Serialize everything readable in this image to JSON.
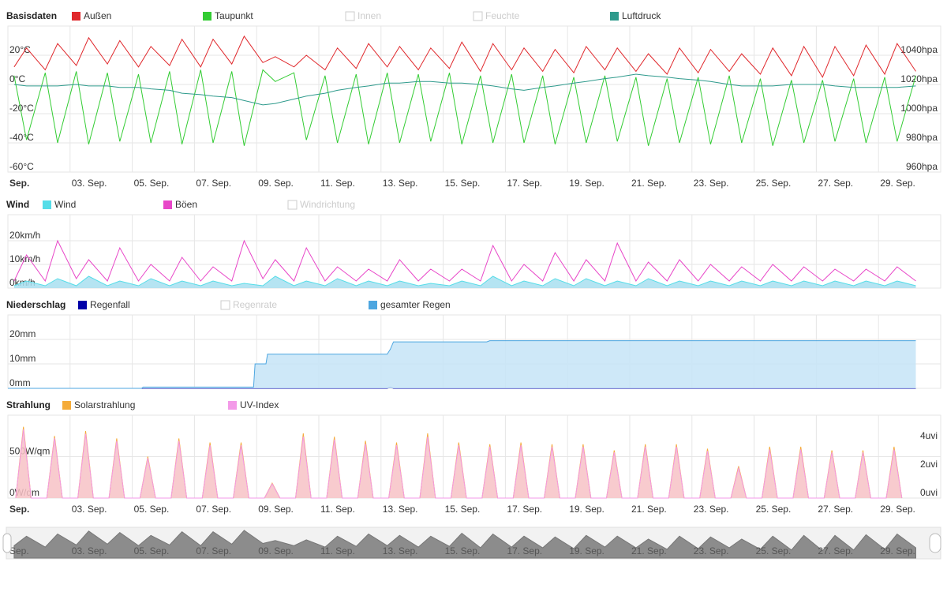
{
  "chart_data": [
    {
      "type": "line",
      "title": "Basisdaten",
      "xlim": [
        1,
        31
      ],
      "ylim": [
        -60,
        40
      ],
      "y2lim": [
        960,
        1060
      ],
      "navigator": {
        "ylim": [
          -5,
          35
        ]
      },
      "yticks": [
        {
          "value": -60,
          "label": "-60°C"
        },
        {
          "value": -40,
          "label": "-40°C"
        },
        {
          "value": -20,
          "label": "-20°C"
        },
        {
          "value": 0,
          "label": "0°C"
        },
        {
          "value": 20,
          "label": "20°C"
        }
      ],
      "y2ticks": [
        {
          "value": 960,
          "label": "960hpa"
        },
        {
          "value": 980,
          "label": "980hpa"
        },
        {
          "value": 1000,
          "label": "1000hpa"
        },
        {
          "value": 1020,
          "label": "1020hpa"
        },
        {
          "value": 1040,
          "label": "1040hpa"
        }
      ],
      "xticks": [
        {
          "value": 1,
          "label": "Sep."
        },
        {
          "value": 3,
          "label": "03. Sep."
        },
        {
          "value": 5,
          "label": "05. Sep."
        },
        {
          "value": 7,
          "label": "07. Sep."
        },
        {
          "value": 9,
          "label": "09. Sep."
        },
        {
          "value": 11,
          "label": "11. Sep."
        },
        {
          "value": 13,
          "label": "13. Sep."
        },
        {
          "value": 15,
          "label": "15. Sep."
        },
        {
          "value": 17,
          "label": "17. Sep."
        },
        {
          "value": 19,
          "label": "19. Sep."
        },
        {
          "value": 21,
          "label": "21. Sep."
        },
        {
          "value": 23,
          "label": "23. Sep."
        },
        {
          "value": 25,
          "label": "25. Sep."
        },
        {
          "value": 27,
          "label": "27. Sep."
        },
        {
          "value": 29,
          "label": "29. Sep."
        }
      ],
      "x": [
        1.2,
        1.6,
        2.2,
        2.6,
        3.2,
        3.6,
        4.2,
        4.6,
        5.2,
        5.6,
        6.2,
        6.6,
        7.2,
        7.6,
        8.2,
        8.6,
        9.2,
        9.6,
        10.2,
        10.6,
        11.2,
        11.6,
        12.2,
        12.6,
        13.2,
        13.6,
        14.2,
        14.6,
        15.2,
        15.6,
        16.2,
        16.6,
        17.2,
        17.6,
        18.2,
        18.6,
        19.2,
        19.6,
        20.2,
        20.6,
        21.2,
        21.6,
        22.2,
        22.6,
        23.2,
        23.6,
        24.2,
        24.6,
        25.2,
        25.6,
        26.2,
        26.6,
        27.2,
        27.6,
        28.2,
        28.6,
        29.2,
        29.6,
        30.2
      ],
      "series": [
        {
          "name": "Außen",
          "color": "#e0282c",
          "values": [
            12,
            25,
            10,
            28,
            13,
            32,
            14,
            30,
            12,
            26,
            13,
            31,
            12,
            31,
            14,
            33,
            15,
            19,
            12,
            20,
            10,
            25,
            11,
            28,
            12,
            26,
            10,
            25,
            11,
            29,
            9,
            28,
            10,
            25,
            9,
            24,
            8,
            26,
            10,
            25,
            9,
            21,
            7,
            25,
            8,
            24,
            9,
            21,
            7,
            25,
            6,
            26,
            5,
            26,
            6,
            27,
            7,
            28,
            9
          ]
        },
        {
          "name": "Taupunkt",
          "color": "#33cc33",
          "values": [
            6,
            -38,
            8,
            -40,
            9,
            -41,
            8,
            -39,
            7,
            -40,
            9,
            -41,
            10,
            -40,
            9,
            -42,
            10,
            2,
            8,
            -38,
            6,
            -40,
            7,
            -41,
            8,
            -40,
            7,
            -39,
            8,
            -41,
            6,
            -40,
            7,
            -40,
            6,
            -41,
            5,
            -40,
            6,
            -39,
            5,
            -42,
            4,
            -40,
            5,
            -41,
            6,
            -40,
            4,
            -42,
            3,
            -40,
            3,
            -39,
            4,
            -40,
            5,
            -39,
            6
          ]
        },
        {
          "name": "Innen",
          "visible": false
        },
        {
          "name": "Feuchte",
          "visible": false
        },
        {
          "name": "Luftdruck",
          "color": "#2e9a8c",
          "axis": "y2",
          "values": [
            1020,
            1019,
            1019,
            1019,
            1020,
            1019,
            1019,
            1018,
            1018,
            1017,
            1016,
            1014,
            1013,
            1012,
            1011,
            1009,
            1006,
            1007,
            1010,
            1012,
            1014,
            1016,
            1018,
            1019,
            1021,
            1021,
            1022,
            1022,
            1021,
            1021,
            1020,
            1019,
            1017,
            1016,
            1018,
            1019,
            1021,
            1022,
            1024,
            1025,
            1027,
            1026,
            1025,
            1024,
            1023,
            1022,
            1020,
            1019,
            1019,
            1019,
            1020,
            1020,
            1020,
            1019,
            1018,
            1018,
            1018,
            1018,
            1019
          ]
        }
      ]
    },
    {
      "type": "area",
      "title": "Wind",
      "xlim": [
        1,
        31
      ],
      "ylim": [
        0,
        31
      ],
      "yticks": [
        {
          "value": 0,
          "label": "0km/h"
        },
        {
          "value": 10,
          "label": "10km/h"
        },
        {
          "value": 20,
          "label": "20km/h"
        }
      ],
      "x": [
        1.2,
        1.6,
        2.2,
        2.6,
        3.2,
        3.6,
        4.2,
        4.6,
        5.2,
        5.6,
        6.2,
        6.6,
        7.2,
        7.6,
        8.2,
        8.6,
        9.2,
        9.6,
        10.2,
        10.6,
        11.2,
        11.6,
        12.2,
        12.6,
        13.2,
        13.6,
        14.2,
        14.6,
        15.2,
        15.6,
        16.2,
        16.6,
        17.2,
        17.6,
        18.2,
        18.6,
        19.2,
        19.6,
        20.2,
        20.6,
        21.2,
        21.6,
        22.2,
        22.6,
        23.2,
        23.6,
        24.2,
        24.6,
        25.2,
        25.6,
        26.2,
        26.6,
        27.2,
        27.6,
        28.2,
        28.6,
        29.2,
        29.6,
        30.2
      ],
      "series": [
        {
          "name": "Wind",
          "color": "#55dde8",
          "fill": "#a8dff0",
          "values": [
            1,
            3,
            1,
            4,
            1,
            5,
            1,
            3,
            1,
            4,
            1,
            3,
            1,
            3,
            1,
            2,
            1,
            5,
            1,
            3,
            1,
            4,
            1,
            3,
            1,
            3,
            1,
            2,
            1,
            3,
            1,
            5,
            1,
            3,
            1,
            4,
            1,
            4,
            1,
            3,
            1,
            4,
            1,
            3,
            1,
            3,
            1,
            3,
            1,
            3,
            1,
            3,
            1,
            3,
            1,
            3,
            1,
            3,
            1
          ]
        },
        {
          "name": "Böen",
          "color": "#e846c8",
          "values": [
            3,
            14,
            3,
            20,
            4,
            12,
            3,
            17,
            3,
            10,
            3,
            13,
            3,
            9,
            3,
            20,
            4,
            12,
            3,
            17,
            3,
            9,
            3,
            8,
            3,
            12,
            3,
            8,
            3,
            8,
            3,
            18,
            3,
            10,
            3,
            15,
            3,
            12,
            3,
            19,
            3,
            11,
            3,
            12,
            3,
            10,
            3,
            9,
            3,
            10,
            3,
            9,
            3,
            8,
            3,
            8,
            3,
            9,
            3
          ]
        },
        {
          "name": "Windrichtung",
          "visible": false
        }
      ]
    },
    {
      "type": "area",
      "title": "Niederschlag",
      "xlim": [
        1,
        31
      ],
      "ylim": [
        0,
        30
      ],
      "yticks": [
        {
          "value": 0,
          "label": "0mm"
        },
        {
          "value": 10,
          "label": "10mm"
        },
        {
          "value": 20,
          "label": "20mm"
        }
      ],
      "x": [
        1,
        5.3,
        5.35,
        8.9,
        8.95,
        9.3,
        9.35,
        13.2,
        13.3,
        13.4,
        16.4,
        16.5,
        30.2
      ],
      "series": [
        {
          "name": "Regenfall",
          "color": "#0000a8",
          "values": [
            0,
            0,
            0,
            0,
            0,
            0,
            0,
            0,
            0.5,
            0,
            0,
            0,
            0
          ]
        },
        {
          "name": "Regenrate",
          "visible": false
        },
        {
          "name": "gesamter Regen",
          "color": "#4da6e0",
          "fill": "#c6e4f7",
          "values": [
            0,
            0,
            0.5,
            0.5,
            10,
            10,
            14,
            14,
            16,
            19,
            19,
            19.5,
            19.5
          ]
        }
      ]
    },
    {
      "type": "area",
      "title": "Strahlung",
      "xlim": [
        1,
        31
      ],
      "ylim": [
        0,
        1000
      ],
      "y2lim": [
        0,
        5.8
      ],
      "yticks": [
        {
          "value": 0,
          "label": "0W/qm"
        },
        {
          "value": 500,
          "label": "500W/qm"
        }
      ],
      "y2ticks": [
        {
          "value": 0,
          "label": "0uvi"
        },
        {
          "value": 2,
          "label": "2uvi"
        },
        {
          "value": 4,
          "label": "4uvi"
        }
      ],
      "xticks": [
        {
          "value": 1,
          "label": "Sep."
        },
        {
          "value": 3,
          "label": "03. Sep."
        },
        {
          "value": 5,
          "label": "05. Sep."
        },
        {
          "value": 7,
          "label": "07. Sep."
        },
        {
          "value": 9,
          "label": "09. Sep."
        },
        {
          "value": 11,
          "label": "11. Sep."
        },
        {
          "value": 13,
          "label": "13. Sep."
        },
        {
          "value": 15,
          "label": "15. Sep."
        },
        {
          "value": 17,
          "label": "17. Sep."
        },
        {
          "value": 19,
          "label": "19. Sep."
        },
        {
          "value": 21,
          "label": "21. Sep."
        },
        {
          "value": 23,
          "label": "23. Sep."
        },
        {
          "value": 25,
          "label": "25. Sep."
        },
        {
          "value": 27,
          "label": "27. Sep."
        },
        {
          "value": 29,
          "label": "29. Sep."
        }
      ],
      "x": [
        1.25,
        1.5,
        1.75,
        2.25,
        2.5,
        2.75,
        3.25,
        3.5,
        3.75,
        4.25,
        4.5,
        4.75,
        5.25,
        5.5,
        5.75,
        6.25,
        6.5,
        6.75,
        7.25,
        7.5,
        7.75,
        8.25,
        8.5,
        8.75,
        9.25,
        9.5,
        9.75,
        10.25,
        10.5,
        10.75,
        11.25,
        11.5,
        11.75,
        12.25,
        12.5,
        12.75,
        13.25,
        13.5,
        13.75,
        14.25,
        14.5,
        14.75,
        15.25,
        15.5,
        15.75,
        16.25,
        16.5,
        16.75,
        17.25,
        17.5,
        17.75,
        18.25,
        18.5,
        18.75,
        19.25,
        19.5,
        19.75,
        20.25,
        20.5,
        20.75,
        21.25,
        21.5,
        21.75,
        22.25,
        22.5,
        22.75,
        23.25,
        23.5,
        23.75,
        24.25,
        24.5,
        24.75,
        25.25,
        25.5,
        25.75,
        26.25,
        26.5,
        26.75,
        27.25,
        27.5,
        27.75,
        28.25,
        28.5,
        28.75,
        29.25,
        29.5,
        29.75
      ],
      "series": [
        {
          "name": "Solarstrahlung",
          "color": "#f5ac3a",
          "fill": "#f7c2c6",
          "values": [
            0,
            860,
            0,
            0,
            750,
            0,
            0,
            810,
            0,
            0,
            720,
            0,
            0,
            500,
            0,
            0,
            720,
            0,
            0,
            670,
            0,
            0,
            670,
            0,
            0,
            180,
            0,
            0,
            780,
            0,
            0,
            740,
            0,
            0,
            690,
            0,
            0,
            670,
            0,
            0,
            780,
            0,
            0,
            670,
            0,
            0,
            650,
            0,
            0,
            670,
            0,
            0,
            650,
            0,
            0,
            650,
            0,
            0,
            575,
            0,
            0,
            650,
            0,
            0,
            650,
            0,
            0,
            595,
            0,
            0,
            385,
            0,
            0,
            620,
            0,
            0,
            620,
            0,
            0,
            575,
            0,
            0,
            575,
            0,
            0,
            620,
            0
          ]
        },
        {
          "name": "UV-Index",
          "color": "#f39ae8",
          "axis": "y2",
          "values": [
            0,
            4.8,
            0,
            0,
            4.2,
            0,
            0,
            4.5,
            0,
            0,
            4.0,
            0,
            0,
            2.8,
            0,
            0,
            4.0,
            0,
            0,
            3.7,
            0,
            0,
            3.7,
            0,
            0,
            1.0,
            0,
            0,
            4.3,
            0,
            0,
            4.1,
            0,
            0,
            3.8,
            0,
            0,
            3.7,
            0,
            0,
            4.3,
            0,
            0,
            3.7,
            0,
            0,
            3.6,
            0,
            0,
            3.7,
            0,
            0,
            3.6,
            0,
            0,
            3.6,
            0,
            0,
            3.2,
            0,
            0,
            3.6,
            0,
            0,
            3.6,
            0,
            0,
            3.3,
            0,
            0,
            2.1,
            0,
            0,
            3.4,
            0,
            0,
            3.4,
            0,
            0,
            3.2,
            0,
            0,
            3.2,
            0,
            0,
            3.4,
            0
          ]
        }
      ]
    }
  ]
}
